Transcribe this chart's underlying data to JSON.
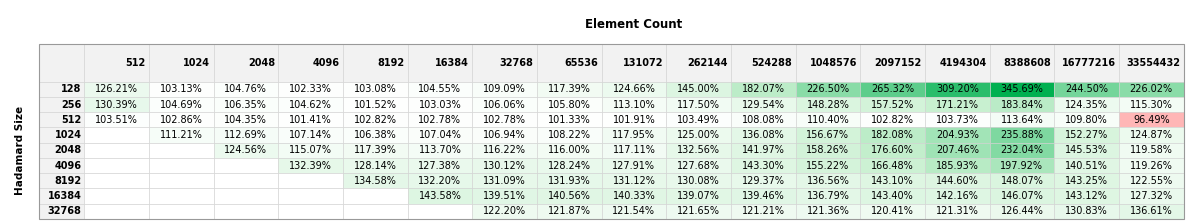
{
  "title": "Element Count",
  "row_label": "Hadamard Size",
  "col_headers": [
    "512",
    "1024",
    "2048",
    "4096",
    "8192",
    "16384",
    "32768",
    "65536",
    "131072",
    "262144",
    "524288",
    "1048576",
    "2097152",
    "4194304",
    "8388608",
    "16777216",
    "33554432"
  ],
  "row_headers": [
    "128",
    "256",
    "512",
    "1024",
    "2048",
    "4096",
    "8192",
    "16384",
    "32768"
  ],
  "table": [
    [
      "126.21%",
      "103.13%",
      "104.76%",
      "102.33%",
      "103.08%",
      "104.55%",
      "109.09%",
      "117.39%",
      "124.66%",
      "145.00%",
      "182.07%",
      "226.50%",
      "265.32%",
      "309.20%",
      "345.69%",
      "244.50%",
      "226.02%"
    ],
    [
      "130.39%",
      "104.69%",
      "106.35%",
      "104.62%",
      "101.52%",
      "103.03%",
      "106.06%",
      "105.80%",
      "113.10%",
      "117.50%",
      "129.54%",
      "148.28%",
      "157.52%",
      "171.21%",
      "183.84%",
      "124.35%",
      "115.30%"
    ],
    [
      "103.51%",
      "102.86%",
      "104.35%",
      "101.41%",
      "102.82%",
      "102.78%",
      "102.78%",
      "101.33%",
      "101.91%",
      "103.49%",
      "108.08%",
      "110.40%",
      "102.82%",
      "103.73%",
      "113.64%",
      "109.80%",
      "96.49%"
    ],
    [
      null,
      "111.21%",
      "112.69%",
      "107.14%",
      "106.38%",
      "107.04%",
      "106.94%",
      "108.22%",
      "117.95%",
      "125.00%",
      "136.08%",
      "156.67%",
      "182.08%",
      "204.93%",
      "235.88%",
      "152.27%",
      "124.87%"
    ],
    [
      null,
      null,
      "124.56%",
      "115.07%",
      "117.39%",
      "113.70%",
      "116.22%",
      "116.00%",
      "117.11%",
      "132.56%",
      "141.97%",
      "158.26%",
      "176.60%",
      "207.46%",
      "232.04%",
      "145.53%",
      "119.58%"
    ],
    [
      null,
      null,
      null,
      "132.39%",
      "128.14%",
      "127.38%",
      "130.12%",
      "128.24%",
      "127.91%",
      "127.68%",
      "143.30%",
      "155.22%",
      "166.48%",
      "185.93%",
      "197.92%",
      "140.51%",
      "119.26%"
    ],
    [
      null,
      null,
      null,
      null,
      "134.58%",
      "132.20%",
      "131.09%",
      "131.93%",
      "131.12%",
      "130.08%",
      "129.37%",
      "136.56%",
      "143.10%",
      "144.60%",
      "148.07%",
      "143.25%",
      "122.55%"
    ],
    [
      null,
      null,
      null,
      null,
      null,
      "143.58%",
      "139.51%",
      "140.56%",
      "140.33%",
      "139.07%",
      "139.46%",
      "136.79%",
      "143.40%",
      "142.16%",
      "146.07%",
      "143.12%",
      "127.32%"
    ],
    [
      null,
      null,
      null,
      null,
      null,
      null,
      "122.20%",
      "121.87%",
      "121.54%",
      "121.65%",
      "121.21%",
      "121.36%",
      "120.41%",
      "121.31%",
      "126.44%",
      "130.83%",
      "136.61%"
    ]
  ],
  "header_bg": "#f2f2f2",
  "header_text_color": "#000000",
  "cell_text_color": "#000000",
  "empty_cell_color": "#ffffff",
  "below_baseline_color": "#ffb6b6",
  "green_low": [
    198,
    239,
    206
  ],
  "green_high": [
    0,
    176,
    80
  ],
  "white": [
    255,
    255,
    255
  ],
  "grid_color": "#d0d0d0",
  "font_size": 7.0,
  "header_font_size": 7.5,
  "title_font_size": 8.5,
  "vmin": 100.0,
  "vmax": 345.69
}
